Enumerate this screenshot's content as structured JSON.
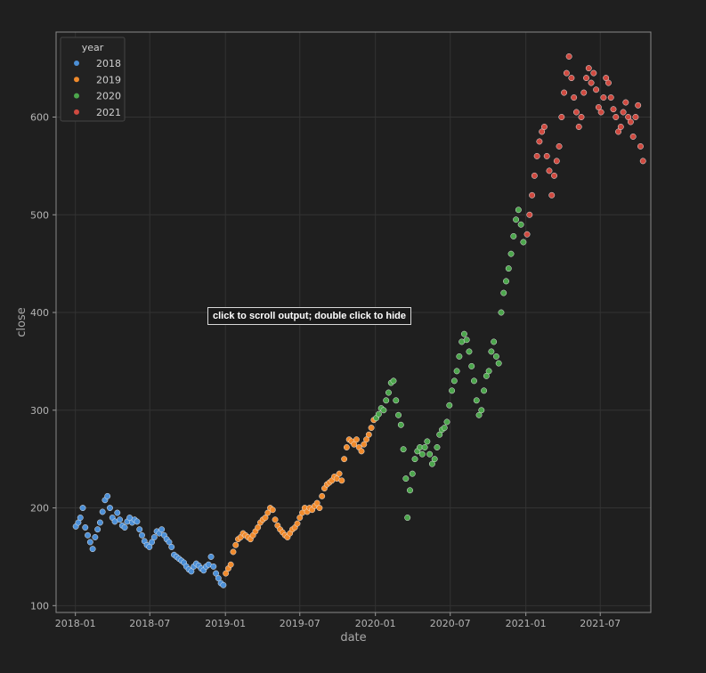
{
  "tooltip": {
    "text": "click to scroll output; double click to hide"
  },
  "chart_data": {
    "type": "scatter",
    "title": "",
    "xlabel": "date",
    "ylabel": "close",
    "x_range": [
      "2017-11-15",
      "2021-11-01"
    ],
    "ylim": [
      93,
      687
    ],
    "grid": true,
    "x_ticks": [
      "2018-01",
      "2018-07",
      "2019-01",
      "2019-07",
      "2020-01",
      "2020-07",
      "2021-01",
      "2021-07"
    ],
    "y_ticks": [
      100,
      200,
      300,
      400,
      500,
      600
    ],
    "legend": {
      "title": "year",
      "position": "top-left"
    },
    "series": [
      {
        "name": "2018",
        "color": "#4c8fd6",
        "points": [
          [
            "2018-01-02",
            181
          ],
          [
            "2018-01-08",
            185
          ],
          [
            "2018-01-13",
            190
          ],
          [
            "2018-01-19",
            200
          ],
          [
            "2018-01-25",
            180
          ],
          [
            "2018-01-31",
            172
          ],
          [
            "2018-02-06",
            165
          ],
          [
            "2018-02-12",
            158
          ],
          [
            "2018-02-18",
            170
          ],
          [
            "2018-02-24",
            178
          ],
          [
            "2018-03-02",
            185
          ],
          [
            "2018-03-08",
            196
          ],
          [
            "2018-03-14",
            208
          ],
          [
            "2018-03-20",
            212
          ],
          [
            "2018-03-26",
            200
          ],
          [
            "2018-04-01",
            190
          ],
          [
            "2018-04-07",
            186
          ],
          [
            "2018-04-13",
            195
          ],
          [
            "2018-04-19",
            188
          ],
          [
            "2018-04-25",
            182
          ],
          [
            "2018-05-01",
            180
          ],
          [
            "2018-05-07",
            186
          ],
          [
            "2018-05-13",
            190
          ],
          [
            "2018-05-19",
            185
          ],
          [
            "2018-05-25",
            188
          ],
          [
            "2018-05-31",
            186
          ],
          [
            "2018-06-06",
            178
          ],
          [
            "2018-06-12",
            172
          ],
          [
            "2018-06-18",
            166
          ],
          [
            "2018-06-24",
            162
          ],
          [
            "2018-06-30",
            160
          ],
          [
            "2018-07-06",
            165
          ],
          [
            "2018-07-12",
            170
          ],
          [
            "2018-07-18",
            176
          ],
          [
            "2018-07-24",
            174
          ],
          [
            "2018-07-30",
            178
          ],
          [
            "2018-08-05",
            172
          ],
          [
            "2018-08-11",
            168
          ],
          [
            "2018-08-17",
            165
          ],
          [
            "2018-08-23",
            160
          ],
          [
            "2018-08-29",
            152
          ],
          [
            "2018-09-04",
            150
          ],
          [
            "2018-09-10",
            148
          ],
          [
            "2018-09-16",
            146
          ],
          [
            "2018-09-22",
            144
          ],
          [
            "2018-09-28",
            140
          ],
          [
            "2018-10-04",
            137
          ],
          [
            "2018-10-10",
            135
          ],
          [
            "2018-10-16",
            140
          ],
          [
            "2018-10-22",
            143
          ],
          [
            "2018-10-28",
            141
          ],
          [
            "2018-11-03",
            138
          ],
          [
            "2018-11-09",
            136
          ],
          [
            "2018-11-15",
            140
          ],
          [
            "2018-11-21",
            142
          ],
          [
            "2018-11-27",
            150
          ],
          [
            "2018-12-03",
            140
          ],
          [
            "2018-12-09",
            133
          ],
          [
            "2018-12-15",
            128
          ],
          [
            "2018-12-21",
            123
          ],
          [
            "2018-12-27",
            121
          ]
        ]
      },
      {
        "name": "2019",
        "color": "#f08a2c",
        "points": [
          [
            "2019-01-02",
            133
          ],
          [
            "2019-01-08",
            138
          ],
          [
            "2019-01-14",
            142
          ],
          [
            "2019-01-20",
            155
          ],
          [
            "2019-01-26",
            162
          ],
          [
            "2019-02-01",
            168
          ],
          [
            "2019-02-07",
            170
          ],
          [
            "2019-02-13",
            174
          ],
          [
            "2019-02-19",
            172
          ],
          [
            "2019-02-25",
            170
          ],
          [
            "2019-03-03",
            168
          ],
          [
            "2019-03-09",
            172
          ],
          [
            "2019-03-15",
            176
          ],
          [
            "2019-03-21",
            180
          ],
          [
            "2019-03-27",
            185
          ],
          [
            "2019-04-02",
            188
          ],
          [
            "2019-04-08",
            190
          ],
          [
            "2019-04-14",
            195
          ],
          [
            "2019-04-20",
            200
          ],
          [
            "2019-04-26",
            198
          ],
          [
            "2019-05-02",
            188
          ],
          [
            "2019-05-08",
            182
          ],
          [
            "2019-05-14",
            178
          ],
          [
            "2019-05-20",
            175
          ],
          [
            "2019-05-26",
            172
          ],
          [
            "2019-06-01",
            170
          ],
          [
            "2019-06-07",
            174
          ],
          [
            "2019-06-13",
            178
          ],
          [
            "2019-06-19",
            180
          ],
          [
            "2019-06-25",
            184
          ],
          [
            "2019-07-01",
            190
          ],
          [
            "2019-07-07",
            195
          ],
          [
            "2019-07-13",
            200
          ],
          [
            "2019-07-19",
            196
          ],
          [
            "2019-07-25",
            200
          ],
          [
            "2019-07-31",
            198
          ],
          [
            "2019-08-06",
            202
          ],
          [
            "2019-08-12",
            205
          ],
          [
            "2019-08-18",
            200
          ],
          [
            "2019-08-24",
            212
          ],
          [
            "2019-08-30",
            220
          ],
          [
            "2019-09-05",
            224
          ],
          [
            "2019-09-11",
            226
          ],
          [
            "2019-09-17",
            228
          ],
          [
            "2019-09-23",
            232
          ],
          [
            "2019-09-29",
            230
          ],
          [
            "2019-10-05",
            235
          ],
          [
            "2019-10-11",
            228
          ],
          [
            "2019-10-17",
            250
          ],
          [
            "2019-10-23",
            262
          ],
          [
            "2019-10-29",
            270
          ],
          [
            "2019-11-04",
            268
          ],
          [
            "2019-11-10",
            265
          ],
          [
            "2019-11-16",
            270
          ],
          [
            "2019-11-22",
            262
          ],
          [
            "2019-11-28",
            258
          ],
          [
            "2019-12-04",
            265
          ],
          [
            "2019-12-10",
            270
          ],
          [
            "2019-12-16",
            275
          ],
          [
            "2019-12-22",
            282
          ],
          [
            "2019-12-28",
            290
          ]
        ]
      },
      {
        "name": "2020",
        "color": "#4ca64c",
        "points": [
          [
            "2020-01-03",
            292
          ],
          [
            "2020-01-09",
            296
          ],
          [
            "2020-01-15",
            302
          ],
          [
            "2020-01-21",
            300
          ],
          [
            "2020-01-27",
            310
          ],
          [
            "2020-02-02",
            318
          ],
          [
            "2020-02-08",
            328
          ],
          [
            "2020-02-14",
            330
          ],
          [
            "2020-02-20",
            310
          ],
          [
            "2020-02-26",
            295
          ],
          [
            "2020-03-03",
            285
          ],
          [
            "2020-03-09",
            260
          ],
          [
            "2020-03-15",
            230
          ],
          [
            "2020-03-19",
            190
          ],
          [
            "2020-03-25",
            218
          ],
          [
            "2020-03-31",
            235
          ],
          [
            "2020-04-06",
            250
          ],
          [
            "2020-04-12",
            258
          ],
          [
            "2020-04-18",
            262
          ],
          [
            "2020-04-24",
            255
          ],
          [
            "2020-04-30",
            262
          ],
          [
            "2020-05-06",
            268
          ],
          [
            "2020-05-12",
            255
          ],
          [
            "2020-05-18",
            245
          ],
          [
            "2020-05-24",
            250
          ],
          [
            "2020-05-30",
            262
          ],
          [
            "2020-06-05",
            275
          ],
          [
            "2020-06-11",
            280
          ],
          [
            "2020-06-17",
            282
          ],
          [
            "2020-06-23",
            288
          ],
          [
            "2020-06-29",
            305
          ],
          [
            "2020-07-05",
            320
          ],
          [
            "2020-07-11",
            330
          ],
          [
            "2020-07-17",
            340
          ],
          [
            "2020-07-23",
            355
          ],
          [
            "2020-07-29",
            370
          ],
          [
            "2020-08-04",
            378
          ],
          [
            "2020-08-10",
            372
          ],
          [
            "2020-08-16",
            360
          ],
          [
            "2020-08-22",
            345
          ],
          [
            "2020-08-28",
            330
          ],
          [
            "2020-09-03",
            310
          ],
          [
            "2020-09-09",
            295
          ],
          [
            "2020-09-15",
            300
          ],
          [
            "2020-09-21",
            320
          ],
          [
            "2020-09-27",
            335
          ],
          [
            "2020-10-03",
            340
          ],
          [
            "2020-10-09",
            360
          ],
          [
            "2020-10-15",
            370
          ],
          [
            "2020-10-21",
            355
          ],
          [
            "2020-10-27",
            348
          ],
          [
            "2020-11-02",
            400
          ],
          [
            "2020-11-08",
            420
          ],
          [
            "2020-11-14",
            432
          ],
          [
            "2020-11-20",
            445
          ],
          [
            "2020-11-26",
            460
          ],
          [
            "2020-12-02",
            478
          ],
          [
            "2020-12-08",
            495
          ],
          [
            "2020-12-14",
            505
          ],
          [
            "2020-12-20",
            490
          ],
          [
            "2020-12-26",
            472
          ]
        ]
      },
      {
        "name": "2021",
        "color": "#cf4a40",
        "points": [
          [
            "2021-01-04",
            480
          ],
          [
            "2021-01-10",
            500
          ],
          [
            "2021-01-16",
            520
          ],
          [
            "2021-01-22",
            540
          ],
          [
            "2021-01-28",
            560
          ],
          [
            "2021-02-03",
            575
          ],
          [
            "2021-02-09",
            585
          ],
          [
            "2021-02-15",
            590
          ],
          [
            "2021-02-21",
            560
          ],
          [
            "2021-02-27",
            545
          ],
          [
            "2021-03-05",
            520
          ],
          [
            "2021-03-11",
            540
          ],
          [
            "2021-03-17",
            555
          ],
          [
            "2021-03-23",
            570
          ],
          [
            "2021-03-29",
            600
          ],
          [
            "2021-04-04",
            625
          ],
          [
            "2021-04-10",
            645
          ],
          [
            "2021-04-16",
            662
          ],
          [
            "2021-04-22",
            640
          ],
          [
            "2021-04-28",
            620
          ],
          [
            "2021-05-04",
            605
          ],
          [
            "2021-05-10",
            590
          ],
          [
            "2021-05-16",
            600
          ],
          [
            "2021-05-22",
            625
          ],
          [
            "2021-05-28",
            640
          ],
          [
            "2021-06-03",
            650
          ],
          [
            "2021-06-09",
            635
          ],
          [
            "2021-06-15",
            645
          ],
          [
            "2021-06-21",
            628
          ],
          [
            "2021-06-27",
            610
          ],
          [
            "2021-07-03",
            605
          ],
          [
            "2021-07-09",
            620
          ],
          [
            "2021-07-15",
            640
          ],
          [
            "2021-07-21",
            635
          ],
          [
            "2021-07-27",
            620
          ],
          [
            "2021-08-02",
            608
          ],
          [
            "2021-08-08",
            600
          ],
          [
            "2021-08-14",
            585
          ],
          [
            "2021-08-20",
            590
          ],
          [
            "2021-08-26",
            605
          ],
          [
            "2021-09-01",
            615
          ],
          [
            "2021-09-07",
            600
          ],
          [
            "2021-09-13",
            595
          ],
          [
            "2021-09-19",
            580
          ],
          [
            "2021-09-25",
            600
          ],
          [
            "2021-10-01",
            612
          ],
          [
            "2021-10-07",
            570
          ],
          [
            "2021-10-13",
            555
          ]
        ]
      }
    ]
  }
}
